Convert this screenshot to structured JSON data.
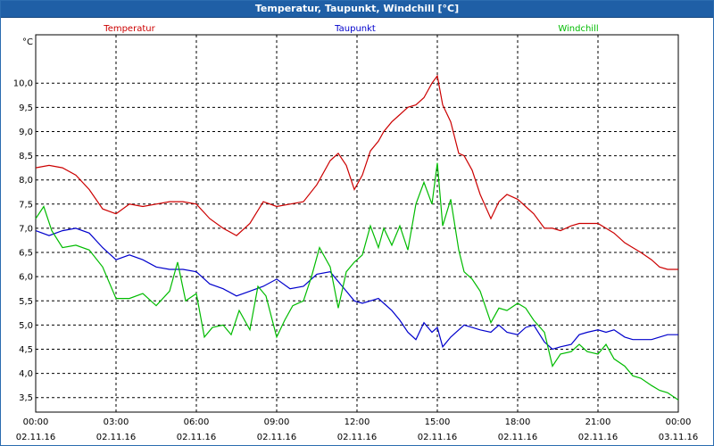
{
  "window": {
    "title": "Temperatur, Taupunkt, Windchill [°C]"
  },
  "chart_data": {
    "type": "line",
    "title": "Temperatur, Taupunkt, Windchill [°C]",
    "ylabel": "°C",
    "ylim": [
      3.2,
      11.0
    ],
    "xlim": [
      0,
      24
    ],
    "grid": true,
    "y_ticks": [
      "3,5",
      "4,0",
      "4,5",
      "5,0",
      "5,5",
      "6,0",
      "6,5",
      "7,0",
      "7,5",
      "8,0",
      "8,5",
      "9,0",
      "9,5",
      "10,0"
    ],
    "x_ticks": [
      {
        "time": "00:00",
        "date": "02.11.16"
      },
      {
        "time": "03:00",
        "date": "02.11.16"
      },
      {
        "time": "06:00",
        "date": "02.11.16"
      },
      {
        "time": "09:00",
        "date": "02.11.16"
      },
      {
        "time": "12:00",
        "date": "02.11.16"
      },
      {
        "time": "15:00",
        "date": "02.11.16"
      },
      {
        "time": "18:00",
        "date": "02.11.16"
      },
      {
        "time": "21:00",
        "date": "02.11.16"
      },
      {
        "time": "00:00",
        "date": "03.11.16"
      }
    ],
    "series": [
      {
        "name": "Temperatur",
        "color": "#cc0000",
        "x": [
          0,
          0.5,
          1,
          1.5,
          2,
          2.5,
          3,
          3.5,
          4,
          4.5,
          5,
          5.5,
          6,
          6.5,
          7,
          7.5,
          8,
          8.5,
          9,
          9.5,
          10,
          10.5,
          11,
          11.3,
          11.6,
          11.9,
          12.2,
          12.5,
          12.8,
          13,
          13.3,
          13.6,
          13.9,
          14.2,
          14.5,
          14.8,
          15,
          15.2,
          15.5,
          15.8,
          16,
          16.3,
          16.6,
          17,
          17.3,
          17.6,
          18,
          18.3,
          18.6,
          19,
          19.3,
          19.6,
          20,
          20.3,
          20.6,
          21,
          21.3,
          21.6,
          22,
          22.3,
          22.6,
          23,
          23.3,
          23.6,
          24
        ],
        "y": [
          8.25,
          8.3,
          8.25,
          8.1,
          7.8,
          7.4,
          7.3,
          7.5,
          7.45,
          7.5,
          7.55,
          7.55,
          7.5,
          7.2,
          7.0,
          6.85,
          7.1,
          7.55,
          7.45,
          7.5,
          7.55,
          7.9,
          8.4,
          8.55,
          8.3,
          7.8,
          8.1,
          8.6,
          8.8,
          9.0,
          9.2,
          9.35,
          9.5,
          9.55,
          9.7,
          10.0,
          10.15,
          9.55,
          9.2,
          8.55,
          8.5,
          8.2,
          7.7,
          7.2,
          7.55,
          7.7,
          7.6,
          7.45,
          7.3,
          7.0,
          7.0,
          6.95,
          7.05,
          7.1,
          7.1,
          7.1,
          7.0,
          6.9,
          6.7,
          6.6,
          6.5,
          6.35,
          6.2,
          6.15,
          6.15
        ]
      },
      {
        "name": "Taupunkt",
        "color": "#0000cc",
        "x": [
          0,
          0.5,
          1,
          1.5,
          2,
          2.5,
          3,
          3.5,
          4,
          4.5,
          5,
          5.5,
          6,
          6.5,
          7,
          7.5,
          8,
          8.5,
          9,
          9.5,
          10,
          10.5,
          11,
          11.3,
          11.6,
          11.9,
          12.2,
          12.5,
          12.8,
          13,
          13.3,
          13.6,
          13.9,
          14.2,
          14.5,
          14.8,
          15,
          15.2,
          15.5,
          15.8,
          16,
          16.3,
          16.6,
          17,
          17.3,
          17.6,
          18,
          18.3,
          18.6,
          19,
          19.3,
          19.6,
          20,
          20.3,
          20.6,
          21,
          21.3,
          21.6,
          22,
          22.3,
          22.6,
          23,
          23.3,
          23.6,
          24
        ],
        "y": [
          6.95,
          6.85,
          6.95,
          7.0,
          6.9,
          6.6,
          6.35,
          6.45,
          6.35,
          6.2,
          6.15,
          6.15,
          6.1,
          5.85,
          5.75,
          5.6,
          5.7,
          5.8,
          5.95,
          5.75,
          5.8,
          6.05,
          6.1,
          5.9,
          5.7,
          5.5,
          5.45,
          5.5,
          5.55,
          5.45,
          5.3,
          5.1,
          4.85,
          4.7,
          5.05,
          4.85,
          4.95,
          4.55,
          4.75,
          4.9,
          5.0,
          4.95,
          4.9,
          4.85,
          5.0,
          4.85,
          4.8,
          4.95,
          5.0,
          4.65,
          4.5,
          4.55,
          4.6,
          4.8,
          4.85,
          4.9,
          4.85,
          4.9,
          4.75,
          4.7,
          4.7,
          4.7,
          4.75,
          4.8,
          4.8
        ]
      },
      {
        "name": "Windchill",
        "color": "#00bb00",
        "x": [
          0,
          0.3,
          0.6,
          1,
          1.5,
          2,
          2.5,
          3,
          3.5,
          4,
          4.5,
          5,
          5.3,
          5.6,
          6,
          6.3,
          6.6,
          7,
          7.3,
          7.6,
          8,
          8.3,
          8.6,
          9,
          9.3,
          9.6,
          10,
          10.3,
          10.6,
          11,
          11.3,
          11.6,
          11.9,
          12.2,
          12.5,
          12.8,
          13,
          13.3,
          13.6,
          13.9,
          14.2,
          14.5,
          14.8,
          15,
          15.2,
          15.5,
          15.8,
          16,
          16.3,
          16.6,
          17,
          17.3,
          17.6,
          18,
          18.3,
          18.6,
          19,
          19.3,
          19.6,
          20,
          20.3,
          20.6,
          21,
          21.3,
          21.6,
          22,
          22.3,
          22.6,
          23,
          23.3,
          23.6,
          24
        ],
        "y": [
          7.2,
          7.45,
          6.95,
          6.6,
          6.65,
          6.55,
          6.2,
          5.55,
          5.55,
          5.65,
          5.4,
          5.7,
          6.3,
          5.5,
          5.65,
          4.75,
          4.95,
          5.0,
          4.8,
          5.3,
          4.9,
          5.8,
          5.6,
          4.75,
          5.1,
          5.4,
          5.5,
          6.0,
          6.6,
          6.2,
          5.35,
          6.1,
          6.3,
          6.45,
          7.05,
          6.6,
          7.0,
          6.65,
          7.05,
          6.55,
          7.5,
          7.95,
          7.5,
          8.35,
          7.05,
          7.6,
          6.55,
          6.1,
          5.95,
          5.7,
          5.05,
          5.35,
          5.3,
          5.45,
          5.35,
          5.1,
          4.85,
          4.15,
          4.4,
          4.45,
          4.6,
          4.45,
          4.4,
          4.6,
          4.3,
          4.15,
          3.95,
          3.9,
          3.75,
          3.65,
          3.6,
          3.45
        ]
      }
    ]
  }
}
